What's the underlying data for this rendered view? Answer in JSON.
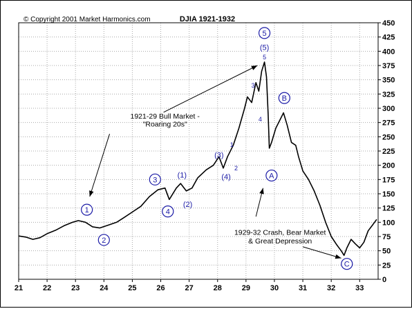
{
  "chart_data": {
    "type": "line",
    "title": "DJIA 1921-1932",
    "copyright": "© Copyright 2001 Market Harmonics.com",
    "xlabel": "",
    "ylabel": "",
    "xlim": [
      21,
      33.65
    ],
    "ylim": [
      0,
      450
    ],
    "x_ticks": [
      "21",
      "22",
      "23",
      "24",
      "25",
      "26",
      "27",
      "28",
      "29",
      "30",
      "31",
      "32",
      "33"
    ],
    "y_ticks": [
      "0",
      "25",
      "50",
      "75",
      "100",
      "125",
      "150",
      "175",
      "200",
      "225",
      "250",
      "275",
      "300",
      "325",
      "350",
      "375",
      "400",
      "425",
      "450"
    ],
    "grid": true,
    "series": [
      {
        "values": [
          [
            21.0,
            76
          ],
          [
            21.25,
            74
          ],
          [
            21.5,
            70
          ],
          [
            21.75,
            73
          ],
          [
            22.0,
            80
          ],
          [
            22.3,
            86
          ],
          [
            22.6,
            94
          ],
          [
            22.9,
            100
          ],
          [
            23.1,
            103
          ],
          [
            23.35,
            100
          ],
          [
            23.6,
            92
          ],
          [
            23.85,
            90
          ],
          [
            24.15,
            95
          ],
          [
            24.45,
            100
          ],
          [
            24.7,
            108
          ],
          [
            25.0,
            118
          ],
          [
            25.3,
            128
          ],
          [
            25.6,
            145
          ],
          [
            25.9,
            157
          ],
          [
            26.15,
            160
          ],
          [
            26.3,
            140
          ],
          [
            26.55,
            160
          ],
          [
            26.7,
            168
          ],
          [
            26.9,
            155
          ],
          [
            27.1,
            160
          ],
          [
            27.3,
            178
          ],
          [
            27.6,
            192
          ],
          [
            27.85,
            200
          ],
          [
            28.05,
            215
          ],
          [
            28.2,
            195
          ],
          [
            28.35,
            215
          ],
          [
            28.55,
            235
          ],
          [
            28.75,
            265
          ],
          [
            28.95,
            300
          ],
          [
            29.05,
            320
          ],
          [
            29.2,
            310
          ],
          [
            29.35,
            345
          ],
          [
            29.45,
            330
          ],
          [
            29.55,
            365
          ],
          [
            29.65,
            381
          ],
          [
            29.72,
            355
          ],
          [
            29.78,
            290
          ],
          [
            29.82,
            230
          ],
          [
            29.9,
            240
          ],
          [
            30.05,
            265
          ],
          [
            30.2,
            280
          ],
          [
            30.32,
            292
          ],
          [
            30.45,
            270
          ],
          [
            30.6,
            240
          ],
          [
            30.75,
            235
          ],
          [
            30.85,
            215
          ],
          [
            31.0,
            190
          ],
          [
            31.2,
            175
          ],
          [
            31.4,
            155
          ],
          [
            31.6,
            130
          ],
          [
            31.8,
            100
          ],
          [
            32.0,
            75
          ],
          [
            32.2,
            60
          ],
          [
            32.35,
            50
          ],
          [
            32.45,
            42
          ],
          [
            32.55,
            55
          ],
          [
            32.7,
            70
          ],
          [
            32.85,
            62
          ],
          [
            33.0,
            55
          ],
          [
            33.15,
            65
          ],
          [
            33.3,
            85
          ],
          [
            33.45,
            95
          ],
          [
            33.6,
            105
          ]
        ]
      }
    ],
    "annotations": [
      {
        "text": "1921-29 Bull Market -",
        "x": 26.15,
        "y": 282
      },
      {
        "text": "\"Roaring 20s\"",
        "x": 26.15,
        "y": 268
      },
      {
        "text": "1929-32 Crash, Bear Market",
        "x": 30.2,
        "y": 78
      },
      {
        "text": "& Great Depression",
        "x": 30.2,
        "y": 63
      }
    ],
    "arrows": [
      {
        "x1": 26.1,
        "y1": 293,
        "x2": 29.4,
        "y2": 375
      },
      {
        "x1": 24.2,
        "y1": 255,
        "x2": 23.5,
        "y2": 145
      },
      {
        "x1": 29.35,
        "y1": 110,
        "x2": 29.6,
        "y2": 160
      },
      {
        "x1": 31.0,
        "y1": 57,
        "x2": 32.35,
        "y2": 37
      }
    ],
    "wave_labels": [
      {
        "text": "1",
        "x": 23.4,
        "y": 122,
        "circled": true
      },
      {
        "text": "2",
        "x": 24.0,
        "y": 69,
        "circled": true
      },
      {
        "text": "3",
        "x": 25.8,
        "y": 175,
        "circled": true
      },
      {
        "text": "4",
        "x": 26.25,
        "y": 119,
        "circled": true
      },
      {
        "text": "5",
        "x": 29.65,
        "y": 432,
        "circled": true
      },
      {
        "text": "A",
        "x": 29.9,
        "y": 182,
        "circled": true
      },
      {
        "text": "B",
        "x": 30.35,
        "y": 318,
        "circled": true
      },
      {
        "text": "C",
        "x": 32.55,
        "y": 27,
        "circled": true
      },
      {
        "text": "(1)",
        "x": 26.75,
        "y": 183,
        "circled": false
      },
      {
        "text": "(2)",
        "x": 26.95,
        "y": 132,
        "circled": false
      },
      {
        "text": "(3)",
        "x": 28.05,
        "y": 218,
        "circled": false
      },
      {
        "text": "(4)",
        "x": 28.3,
        "y": 180,
        "circled": false
      },
      {
        "text": "(5)",
        "x": 29.65,
        "y": 407,
        "circled": false
      },
      {
        "text": "1",
        "x": 28.5,
        "y": 236,
        "circled": false,
        "small": true
      },
      {
        "text": "2",
        "x": 28.65,
        "y": 195,
        "circled": false,
        "small": true
      },
      {
        "text": "3",
        "x": 29.25,
        "y": 340,
        "circled": false,
        "small": true
      },
      {
        "text": "4",
        "x": 29.5,
        "y": 281,
        "circled": false,
        "small": true
      },
      {
        "text": "5",
        "x": 29.65,
        "y": 390,
        "circled": false,
        "small": true
      }
    ],
    "colors": {
      "line": "#000000",
      "wave_label": "#1a1aa6",
      "grid": "#a8a8a8",
      "frame": "#000000"
    }
  }
}
